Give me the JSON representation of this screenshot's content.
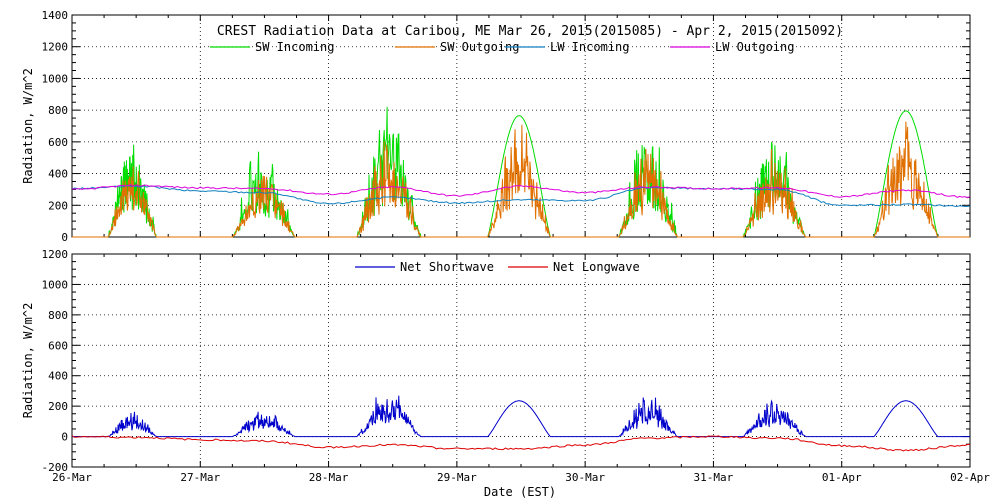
{
  "title": "CREST Radiation Data at Caribou, ME   Mar 26, 2015(2015085) - Apr  2, 2015(2015092)",
  "xlabel": "Date (EST)",
  "x_ticks": [
    "26-Mar",
    "27-Mar",
    "28-Mar",
    "29-Mar",
    "30-Mar",
    "31-Mar",
    "01-Apr",
    "02-Apr"
  ],
  "chart_data": [
    {
      "type": "line",
      "ylabel": "Radiation, W/m^2",
      "ylim": [
        0,
        1400
      ],
      "yticks": [
        "0",
        "200",
        "400",
        "600",
        "800",
        "1000",
        "1200",
        "1400"
      ],
      "xlim": [
        "2015-03-26",
        "2015-04-02"
      ],
      "grid": true,
      "legend": "top",
      "series": [
        {
          "name": "SW Incoming",
          "color": "#00dd00",
          "peaks": [
            {
              "day": "2015-03-26",
              "rise": 0.28,
              "set": 0.66,
              "peak": 450,
              "max": 600
            },
            {
              "day": "2015-03-27",
              "rise": 0.25,
              "set": 0.74,
              "peak": 380,
              "max": 610
            },
            {
              "day": "2015-03-28",
              "rise": 0.22,
              "set": 0.72,
              "peak": 580,
              "max": 760
            },
            {
              "day": "2015-03-29",
              "rise": 0.24,
              "set": 0.73,
              "peak": 765,
              "max": 765
            },
            {
              "day": "2015-03-30",
              "rise": 0.26,
              "set": 0.72,
              "peak": 480,
              "max": 710
            },
            {
              "day": "2015-03-31",
              "rise": 0.23,
              "set": 0.72,
              "peak": 460,
              "max": 700
            },
            {
              "day": "2015-04-01",
              "rise": 0.25,
              "set": 0.75,
              "peak": 795,
              "max": 795
            }
          ]
        },
        {
          "name": "SW Outgoing",
          "color": "#e07000",
          "peaks": [
            {
              "day": "2015-03-26",
              "peak": 400
            },
            {
              "day": "2015-03-27",
              "peak": 330
            },
            {
              "day": "2015-03-28",
              "peak": 480
            },
            {
              "day": "2015-03-29",
              "peak": 545
            },
            {
              "day": "2015-03-30",
              "peak": 420
            },
            {
              "day": "2015-03-31",
              "peak": 410
            },
            {
              "day": "2015-04-01",
              "peak": 575
            }
          ]
        },
        {
          "name": "LW Incoming",
          "color": "#1080c0",
          "x": [
            "2015-03-26",
            "2015-03-26 12:00",
            "2015-03-27",
            "2015-03-27 12:00",
            "2015-03-28",
            "2015-03-28 12:00",
            "2015-03-29",
            "2015-03-29 12:00",
            "2015-03-30",
            "2015-03-30 12:00",
            "2015-03-31",
            "2015-03-31 12:00",
            "2015-04-01",
            "2015-04-01 12:00",
            "2015-04-02"
          ],
          "y": [
            305,
            320,
            290,
            280,
            210,
            250,
            215,
            235,
            230,
            310,
            305,
            300,
            200,
            205,
            195
          ]
        },
        {
          "name": "LW Outgoing",
          "color": "#dd00dd",
          "x": [
            "2015-03-26",
            "2015-03-26 12:00",
            "2015-03-27",
            "2015-03-27 12:00",
            "2015-03-28",
            "2015-03-28 12:00",
            "2015-03-29",
            "2015-03-29 12:00",
            "2015-03-30",
            "2015-03-30 12:00",
            "2015-03-31",
            "2015-03-31 12:00",
            "2015-04-01",
            "2015-04-01 12:00",
            "2015-04-02"
          ],
          "y": [
            300,
            325,
            310,
            305,
            270,
            315,
            260,
            320,
            280,
            315,
            305,
            310,
            255,
            295,
            250
          ]
        }
      ]
    },
    {
      "type": "line",
      "ylabel": "Radiation, W/m^2",
      "ylim": [
        -200,
        1200
      ],
      "yticks": [
        "-200",
        "0",
        "200",
        "400",
        "600",
        "800",
        "1000",
        "1200"
      ],
      "xlim": [
        "2015-03-26",
        "2015-04-02"
      ],
      "grid": true,
      "legend": "top",
      "series": [
        {
          "name": "Net Shortwave",
          "color": "#0000cc",
          "peaks": [
            {
              "day": "2015-03-26",
              "rise": 0.28,
              "set": 0.66,
              "peak": 120
            },
            {
              "day": "2015-03-27",
              "rise": 0.25,
              "set": 0.74,
              "peak": 130
            },
            {
              "day": "2015-03-28",
              "rise": 0.22,
              "set": 0.72,
              "peak": 230
            },
            {
              "day": "2015-03-29",
              "rise": 0.24,
              "set": 0.73,
              "peak": 235
            },
            {
              "day": "2015-03-30",
              "rise": 0.26,
              "set": 0.72,
              "peak": 200
            },
            {
              "day": "2015-03-31",
              "rise": 0.23,
              "set": 0.72,
              "peak": 185
            },
            {
              "day": "2015-04-01",
              "rise": 0.25,
              "set": 0.75,
              "peak": 235
            }
          ]
        },
        {
          "name": "Net Longwave",
          "color": "#dd0000",
          "x": [
            "2015-03-26",
            "2015-03-26 12:00",
            "2015-03-27",
            "2015-03-27 12:00",
            "2015-03-28",
            "2015-03-28 12:00",
            "2015-03-29",
            "2015-03-29 12:00",
            "2015-03-30",
            "2015-03-30 12:00",
            "2015-03-31",
            "2015-03-31 12:00",
            "2015-04-01",
            "2015-04-01 12:00",
            "2015-04-02"
          ],
          "y": [
            0,
            -5,
            -20,
            -30,
            -70,
            -55,
            -80,
            -80,
            -55,
            -10,
            0,
            -10,
            -60,
            -90,
            -55
          ]
        }
      ]
    }
  ]
}
